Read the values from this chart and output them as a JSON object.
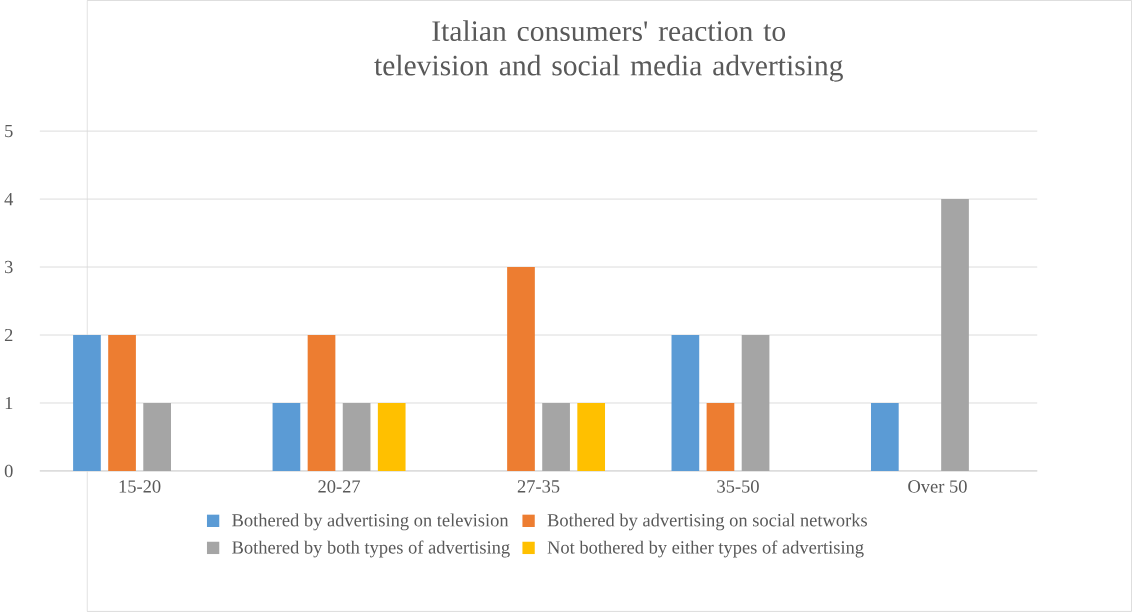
{
  "chart_data": {
    "type": "bar",
    "title": "Italian consumers' reaction to television and social media advertising",
    "categories": [
      "15-20",
      "20-27",
      "27-35",
      "35-50",
      "Over 50"
    ],
    "series": [
      {
        "name": "Bothered by advertising on television",
        "color": "#5b9bd5",
        "values": [
          2,
          1,
          0,
          2,
          1
        ]
      },
      {
        "name": "Bothered by advertising on social networks",
        "color": "#ed7d31",
        "values": [
          2,
          2,
          3,
          1,
          0
        ]
      },
      {
        "name": "Bothered by both types of advertising",
        "color": "#a5a5a5",
        "values": [
          1,
          1,
          1,
          2,
          4
        ]
      },
      {
        "name": "Not bothered by either types of advertising",
        "color": "#ffc000",
        "values": [
          0,
          1,
          1,
          0,
          0
        ]
      }
    ],
    "ylim": [
      0,
      5
    ],
    "yticks": [
      0,
      1,
      2,
      3,
      4,
      5
    ],
    "grid": "y",
    "legend": "bottom"
  }
}
